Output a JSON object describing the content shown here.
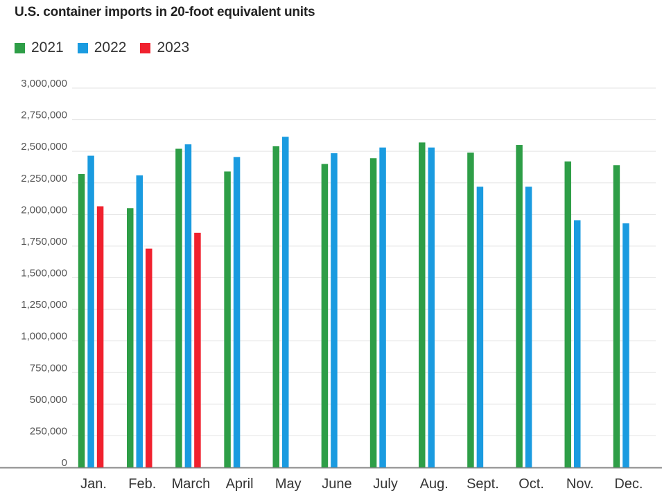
{
  "chart_data": {
    "type": "bar",
    "title": "U.S. container imports in 20-foot equivalent units",
    "xlabel": "",
    "ylabel": "",
    "ylim": [
      0,
      3000000
    ],
    "yticks": [
      0,
      250000,
      500000,
      750000,
      1000000,
      1250000,
      1500000,
      1750000,
      2000000,
      2250000,
      2500000,
      2750000,
      3000000
    ],
    "ytick_labels": [
      "0",
      "250,000",
      "500,000",
      "750,000",
      "1,000,000",
      "1,250,000",
      "1,500,000",
      "1,750,000",
      "2,000,000",
      "2,250,000",
      "2,500,000",
      "2,750,000",
      "3,000,000"
    ],
    "categories": [
      "Jan.",
      "Feb.",
      "March",
      "April",
      "May",
      "June",
      "July",
      "Aug.",
      "Sept.",
      "Oct.",
      "Nov.",
      "Dec."
    ],
    "grid": true,
    "legend_position": "top-left",
    "series": [
      {
        "name": "2021",
        "color": "#2e9e47",
        "values": [
          2320000,
          2050000,
          2520000,
          2340000,
          2540000,
          2400000,
          2445000,
          2570000,
          2490000,
          2550000,
          2420000,
          2390000
        ]
      },
      {
        "name": "2022",
        "color": "#1a9be0",
        "values": [
          2465000,
          2310000,
          2555000,
          2455000,
          2615000,
          2485000,
          2530000,
          2530000,
          2220000,
          2220000,
          1955000,
          1930000
        ]
      },
      {
        "name": "2023",
        "color": "#f0212e",
        "values": [
          2065000,
          1730000,
          1855000,
          null,
          null,
          null,
          null,
          null,
          null,
          null,
          null,
          null
        ]
      }
    ]
  }
}
